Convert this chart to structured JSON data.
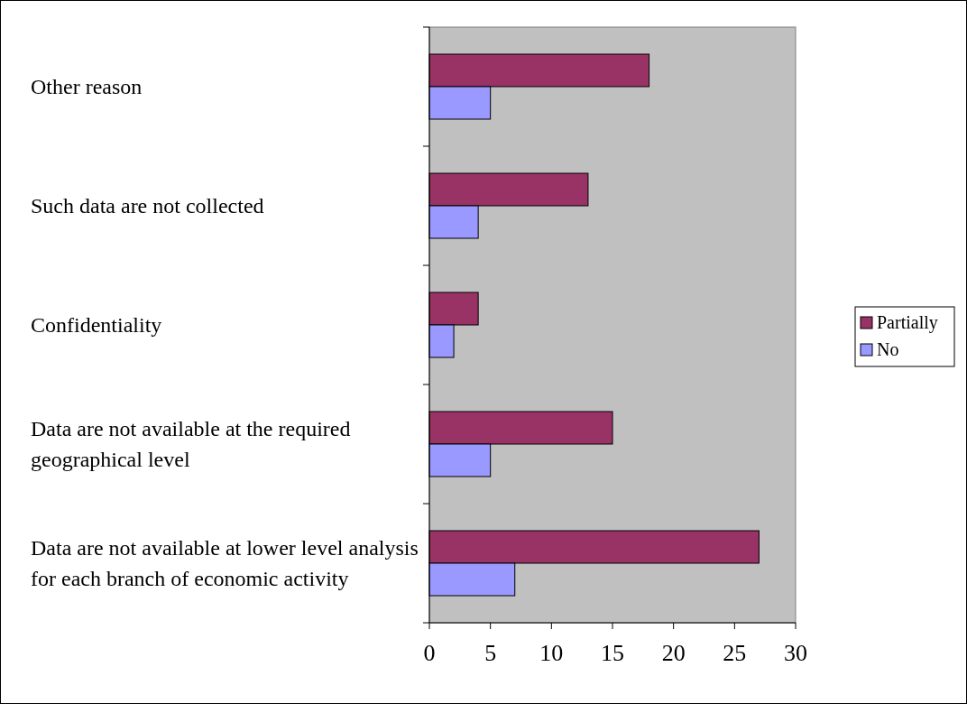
{
  "chart_data": {
    "type": "bar",
    "orientation": "horizontal",
    "categories": [
      "Other reason",
      "Such data are not collected",
      "Confidentiality",
      "Data are not available at the required geographical level",
      "Data are not available at lower level analysis for each branch of economic activity"
    ],
    "series": [
      {
        "name": "Partially",
        "color": "#993366",
        "values": [
          18,
          13,
          4,
          15,
          27
        ]
      },
      {
        "name": "No",
        "color": "#9999ff",
        "values": [
          5,
          4,
          2,
          5,
          7
        ]
      }
    ],
    "xlim": [
      0,
      30
    ],
    "xticks": [
      0,
      5,
      10,
      15,
      20,
      25,
      30
    ],
    "grid": false,
    "legend": "right"
  }
}
